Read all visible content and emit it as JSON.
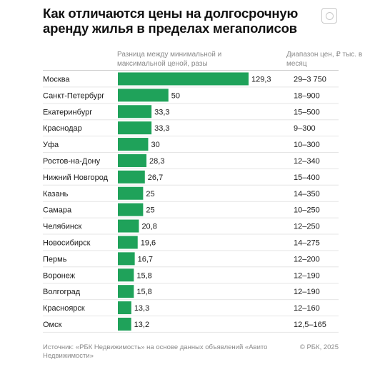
{
  "header": {
    "title": "Как отличаются цены на долгосрочную аренду жилья в пределах мегаполисов",
    "bars_column_label": "Разница между минимальной и максимальной ценой, разы",
    "range_column_label": "Диапазон цен, ₽ тыс. в месяц"
  },
  "footer": {
    "source": "Источник: «РБК Недвижимость» на основе данных объявлений «Авито Недвижимости»",
    "copyright": "© РБК, 2025"
  },
  "colors": {
    "bar": "#1fa25a",
    "text": "#1a1a1a",
    "muted": "#8a8a8a"
  },
  "icons": {
    "brand": "rbc-logo-icon"
  },
  "chart_data": {
    "type": "bar",
    "orientation": "horizontal",
    "title": "Как отличаются цены на долгосрочную аренду жилья в пределах мегаполисов",
    "categories": [
      "Москва",
      "Санкт-Петербург",
      "Екатеринбург",
      "Краснодар",
      "Уфа",
      "Ростов-на-Дону",
      "Нижний Новгород",
      "Казань",
      "Самара",
      "Челябинск",
      "Новосибирск",
      "Пермь",
      "Воронеж",
      "Волгоград",
      "Красноярск",
      "Омск"
    ],
    "series": [
      {
        "name": "Разница между минимальной и максимальной ценой, разы",
        "values": [
          129.3,
          50,
          33.3,
          33.3,
          30,
          28.3,
          26.7,
          25,
          25,
          20.8,
          19.6,
          16.7,
          15.8,
          15.8,
          13.3,
          13.2
        ],
        "labels": [
          "129,3",
          "50",
          "33,3",
          "33,3",
          "30",
          "28,3",
          "26,7",
          "25",
          "25",
          "20,8",
          "19,6",
          "16,7",
          "15,8",
          "15,8",
          "13,3",
          "13,2"
        ]
      }
    ],
    "ranges": [
      "29–3 750",
      "18–900",
      "15–500",
      "9–300",
      "10–300",
      "12–340",
      "15–400",
      "14–350",
      "10–250",
      "12–250",
      "14–275",
      "12–200",
      "12–190",
      "12–190",
      "12–160",
      "12,5–165"
    ],
    "xlim": [
      0,
      129.3
    ],
    "grid": false,
    "legend": "none"
  }
}
